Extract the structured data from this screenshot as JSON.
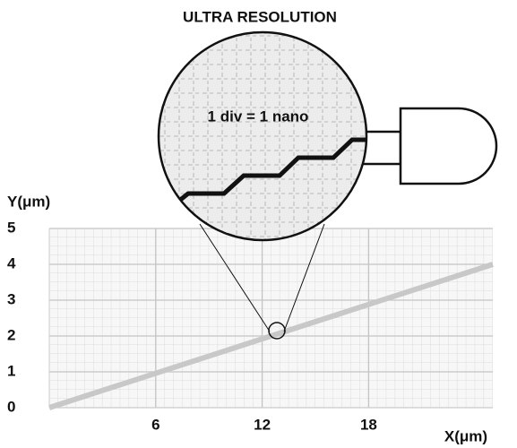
{
  "chart_data": {
    "type": "line",
    "title": "ULTRA RESOLUTION",
    "annotation": "1 div = 1 nano",
    "x_label": "X(μm)",
    "y_label": "Y(μm)",
    "x": [
      0,
      25
    ],
    "series": [
      {
        "color": "#c8c8c8",
        "values": [
          0,
          4
        ]
      }
    ],
    "xlim": [
      0,
      25
    ],
    "ylim": [
      0,
      5
    ],
    "xticks": [
      6,
      12,
      18
    ],
    "yticks": [
      0,
      1,
      2,
      3,
      4,
      5
    ],
    "grid": true
  }
}
